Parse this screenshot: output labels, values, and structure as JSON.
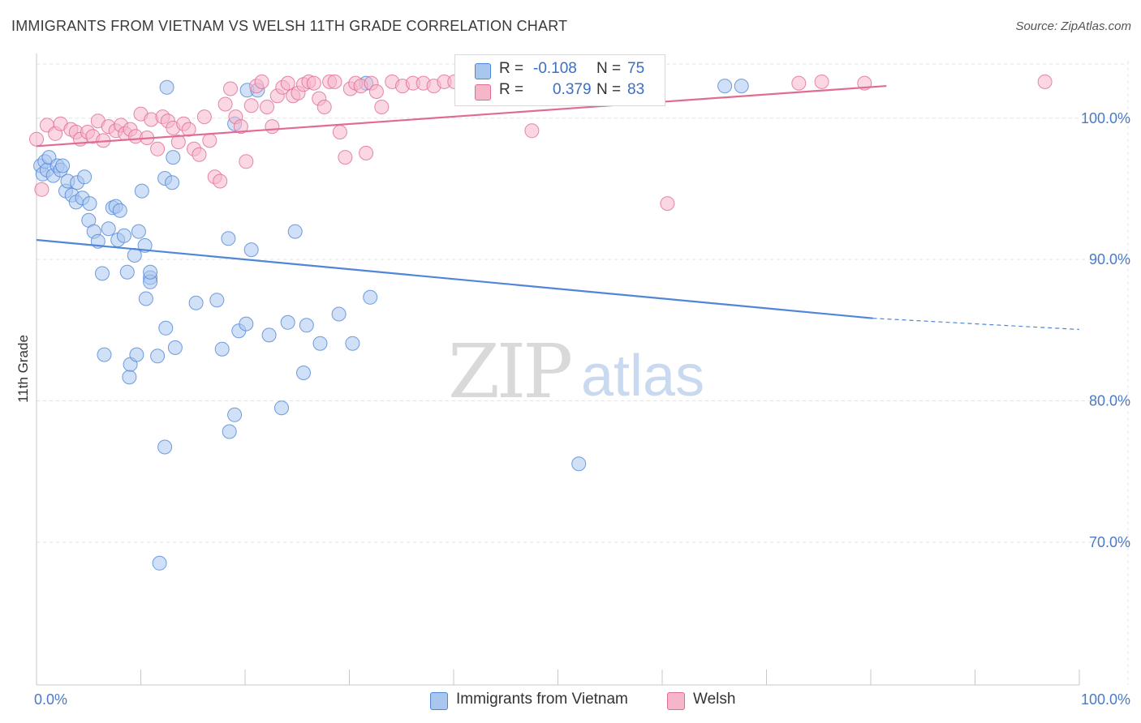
{
  "header": {
    "title": "IMMIGRANTS FROM VIETNAM VS WELSH 11TH GRADE CORRELATION CHART",
    "source": "Source: ZipAtlas.com"
  },
  "watermark": {
    "zip": "ZIP",
    "atlas": "atlas"
  },
  "legend": {
    "r_label": "R =",
    "n_label": "N =",
    "rows": [
      {
        "r": "-0.108",
        "n": "75",
        "color": "#a9c6ef"
      },
      {
        "r": "0.379",
        "n": "83",
        "color": "#f6b6ca"
      }
    ]
  },
  "bottom_legend": [
    {
      "label": "Immigrants from Vietnam",
      "color": "#a9c6ef"
    },
    {
      "label": "Welsh",
      "color": "#f6b6ca"
    }
  ],
  "chart_data": {
    "type": "scatter",
    "title": "IMMIGRANTS FROM VIETNAM VS WELSH 11TH GRADE CORRELATION CHART",
    "ylabel": "11th Grade",
    "xlabel": "",
    "x_tick_labels": [
      "0.0%",
      "100.0%"
    ],
    "y_tick_labels": [
      "100.0%",
      "90.0%",
      "80.0%",
      "70.0%"
    ],
    "y_ticks": [
      97.3,
      87.2,
      77.1,
      67.0
    ],
    "xlim": [
      0,
      100
    ],
    "ylim": [
      56.8,
      101.4
    ],
    "grid": true,
    "legend_position": "top-center",
    "series": [
      {
        "name": "Immigrants from Vietnam",
        "color": "#4f86d8",
        "fill": "#a9c6ef",
        "r": -0.108,
        "n": 75,
        "trend": {
          "x0": 0,
          "y0": 88.6,
          "x1": 80.2,
          "y1": 83.0,
          "dash_to_x": 100,
          "dash_to_y": 82.2
        },
        "points": [
          [
            0.4,
            93.9
          ],
          [
            0.6,
            93.3
          ],
          [
            0.8,
            94.2
          ],
          [
            1.0,
            93.6
          ],
          [
            1.2,
            94.5
          ],
          [
            1.6,
            93.2
          ],
          [
            2.0,
            93.9
          ],
          [
            2.3,
            93.6
          ],
          [
            2.5,
            93.9
          ],
          [
            2.8,
            92.1
          ],
          [
            3.0,
            92.8
          ],
          [
            3.4,
            91.8
          ],
          [
            3.8,
            91.3
          ],
          [
            3.9,
            92.7
          ],
          [
            4.4,
            91.6
          ],
          [
            4.6,
            93.1
          ],
          [
            5.0,
            90.0
          ],
          [
            5.1,
            91.2
          ],
          [
            5.5,
            89.2
          ],
          [
            5.9,
            88.5
          ],
          [
            6.3,
            86.2
          ],
          [
            6.5,
            80.4
          ],
          [
            6.9,
            89.4
          ],
          [
            7.3,
            90.9
          ],
          [
            7.6,
            91.0
          ],
          [
            7.8,
            88.6
          ],
          [
            8.0,
            90.7
          ],
          [
            8.4,
            88.9
          ],
          [
            8.7,
            86.3
          ],
          [
            8.9,
            78.8
          ],
          [
            9.0,
            79.7
          ],
          [
            9.4,
            87.5
          ],
          [
            9.6,
            80.4
          ],
          [
            9.8,
            89.2
          ],
          [
            10.1,
            92.1
          ],
          [
            10.4,
            88.2
          ],
          [
            10.5,
            84.4
          ],
          [
            10.9,
            85.9
          ],
          [
            10.9,
            85.6
          ],
          [
            10.9,
            86.3
          ],
          [
            11.6,
            80.3
          ],
          [
            12.3,
            73.8
          ],
          [
            11.8,
            65.5
          ],
          [
            12.3,
            93.0
          ],
          [
            13.0,
            92.7
          ],
          [
            13.1,
            94.5
          ],
          [
            12.5,
            99.5
          ],
          [
            12.4,
            82.3
          ],
          [
            13.3,
            80.9
          ],
          [
            15.3,
            84.1
          ],
          [
            17.3,
            84.3
          ],
          [
            18.4,
            88.7
          ],
          [
            19.0,
            96.9
          ],
          [
            20.2,
            99.3
          ],
          [
            21.2,
            99.3
          ],
          [
            17.8,
            80.8
          ],
          [
            18.5,
            74.9
          ],
          [
            19.0,
            76.1
          ],
          [
            19.4,
            82.1
          ],
          [
            20.1,
            82.6
          ],
          [
            20.6,
            87.9
          ],
          [
            22.3,
            81.8
          ],
          [
            23.5,
            76.6
          ],
          [
            24.1,
            82.7
          ],
          [
            24.8,
            89.2
          ],
          [
            25.6,
            79.1
          ],
          [
            25.9,
            82.5
          ],
          [
            27.2,
            81.2
          ],
          [
            29.0,
            83.3
          ],
          [
            30.3,
            81.2
          ],
          [
            32.0,
            84.5
          ],
          [
            31.6,
            99.8
          ],
          [
            66.0,
            99.6
          ],
          [
            67.6,
            99.6
          ],
          [
            52.0,
            72.6
          ]
        ]
      },
      {
        "name": "Welsh",
        "color": "#e06c92",
        "fill": "#f6b6ca",
        "r": 0.379,
        "n": 83,
        "trend": {
          "x0": 0,
          "y0": 95.3,
          "x1": 81.5,
          "y1": 99.6
        },
        "points": [
          [
            0.0,
            95.8
          ],
          [
            0.5,
            92.2
          ],
          [
            1.0,
            96.8
          ],
          [
            1.8,
            96.2
          ],
          [
            2.3,
            96.9
          ],
          [
            3.3,
            96.5
          ],
          [
            3.8,
            96.3
          ],
          [
            4.2,
            95.8
          ],
          [
            4.9,
            96.3
          ],
          [
            5.4,
            96.0
          ],
          [
            5.9,
            97.1
          ],
          [
            6.4,
            95.7
          ],
          [
            6.9,
            96.7
          ],
          [
            7.6,
            96.4
          ],
          [
            8.1,
            96.8
          ],
          [
            8.5,
            96.2
          ],
          [
            9.0,
            96.5
          ],
          [
            9.5,
            96.0
          ],
          [
            10.0,
            97.6
          ],
          [
            10.6,
            95.9
          ],
          [
            11.0,
            97.2
          ],
          [
            11.6,
            95.1
          ],
          [
            12.1,
            97.4
          ],
          [
            12.6,
            97.1
          ],
          [
            13.1,
            96.6
          ],
          [
            13.6,
            95.6
          ],
          [
            14.1,
            96.9
          ],
          [
            14.6,
            96.5
          ],
          [
            15.1,
            95.1
          ],
          [
            15.6,
            94.7
          ],
          [
            16.1,
            97.4
          ],
          [
            16.6,
            95.7
          ],
          [
            17.1,
            93.1
          ],
          [
            17.6,
            92.8
          ],
          [
            18.1,
            98.3
          ],
          [
            18.6,
            99.4
          ],
          [
            19.1,
            97.4
          ],
          [
            19.6,
            96.7
          ],
          [
            20.1,
            94.2
          ],
          [
            20.6,
            98.2
          ],
          [
            21.1,
            99.6
          ],
          [
            21.6,
            99.9
          ],
          [
            22.1,
            98.1
          ],
          [
            22.6,
            96.7
          ],
          [
            23.1,
            98.9
          ],
          [
            23.6,
            99.5
          ],
          [
            24.1,
            99.8
          ],
          [
            24.6,
            98.9
          ],
          [
            25.1,
            99.1
          ],
          [
            25.6,
            99.7
          ],
          [
            26.1,
            99.9
          ],
          [
            26.6,
            99.8
          ],
          [
            27.1,
            98.7
          ],
          [
            27.6,
            98.1
          ],
          [
            28.1,
            99.9
          ],
          [
            28.6,
            99.9
          ],
          [
            29.1,
            96.3
          ],
          [
            29.6,
            94.5
          ],
          [
            30.1,
            99.4
          ],
          [
            30.6,
            99.8
          ],
          [
            31.1,
            99.6
          ],
          [
            31.6,
            94.8
          ],
          [
            32.1,
            99.8
          ],
          [
            32.6,
            99.2
          ],
          [
            33.1,
            98.1
          ],
          [
            34.1,
            99.9
          ],
          [
            35.1,
            99.6
          ],
          [
            36.1,
            99.8
          ],
          [
            37.1,
            99.8
          ],
          [
            38.1,
            99.6
          ],
          [
            39.1,
            99.9
          ],
          [
            40.1,
            99.9
          ],
          [
            41.1,
            99.7
          ],
          [
            42.1,
            99.6
          ],
          [
            43.1,
            99.8
          ],
          [
            44.1,
            99.9
          ],
          [
            46.1,
            99.8
          ],
          [
            47.5,
            96.4
          ],
          [
            60.5,
            91.2
          ],
          [
            73.1,
            99.8
          ],
          [
            75.3,
            99.9
          ],
          [
            79.4,
            99.8
          ],
          [
            96.7,
            99.9
          ]
        ]
      }
    ]
  }
}
